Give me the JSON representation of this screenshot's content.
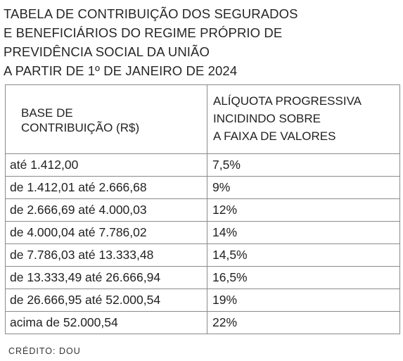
{
  "title_lines": [
    "TABELA DE CONTRIBUIÇÃO DOS SEGURADOS",
    "E BENEFICIÁRIOS DO REGIME PRÓPRIO DE",
    "PREVIDÊNCIA SOCIAL DA UNIÃO",
    "A PARTIR DE 1º DE JANEIRO DE 2024"
  ],
  "table": {
    "header_base_lines": [
      "BASE DE",
      "CONTRIBUIÇÃO (R$)"
    ],
    "header_rate_lines": [
      "ALÍQUOTA PROGRESSIVA",
      "INCIDINDO SOBRE",
      "A FAIXA DE VALORES"
    ],
    "rows": [
      {
        "base": "até 1.412,00",
        "rate": "7,5%"
      },
      {
        "base": "de 1.412,01 até 2.666,68",
        "rate": "9%"
      },
      {
        "base": "de 2.666,69 até 4.000,03",
        "rate": "12%"
      },
      {
        "base": "de 4.000,04 até 7.786,02",
        "rate": "14%"
      },
      {
        "base": "de 7.786,03 até 13.333,48",
        "rate": "14,5%"
      },
      {
        "base": "de 13.333,49 até 26.666,94",
        "rate": "16,5%"
      },
      {
        "base": "de 26.666,95 até 52.000,54",
        "rate": "19%"
      },
      {
        "base": "acima de 52.000,54",
        "rate": "22%"
      }
    ]
  },
  "credit": "CRÉDITO: DOU"
}
